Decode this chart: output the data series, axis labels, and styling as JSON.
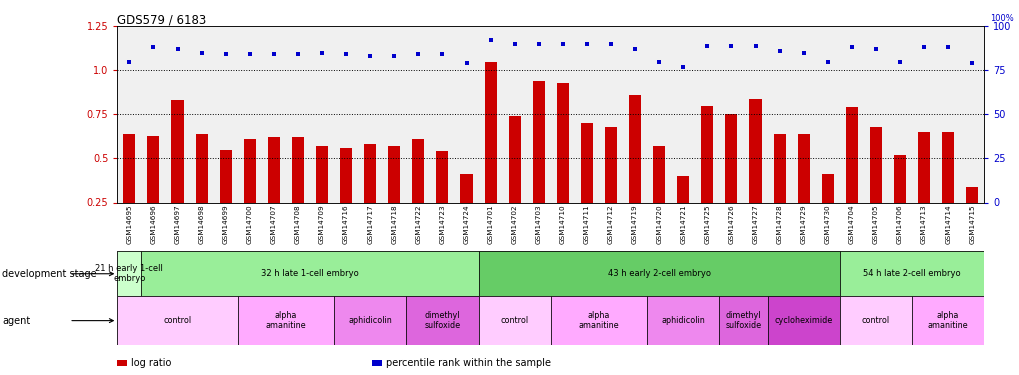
{
  "title": "GDS579 / 6183",
  "samples": [
    "GSM14695",
    "GSM14696",
    "GSM14697",
    "GSM14698",
    "GSM14699",
    "GSM14700",
    "GSM14707",
    "GSM14708",
    "GSM14709",
    "GSM14716",
    "GSM14717",
    "GSM14718",
    "GSM14722",
    "GSM14723",
    "GSM14724",
    "GSM14701",
    "GSM14702",
    "GSM14703",
    "GSM14710",
    "GSM14711",
    "GSM14712",
    "GSM14719",
    "GSM14720",
    "GSM14721",
    "GSM14725",
    "GSM14726",
    "GSM14727",
    "GSM14728",
    "GSM14729",
    "GSM14730",
    "GSM14704",
    "GSM14705",
    "GSM14706",
    "GSM14713",
    "GSM14714",
    "GSM14715"
  ],
  "log_ratio": [
    0.64,
    0.63,
    0.83,
    0.64,
    0.55,
    0.61,
    0.62,
    0.62,
    0.57,
    0.56,
    0.58,
    0.57,
    0.61,
    0.54,
    0.41,
    1.05,
    0.74,
    0.94,
    0.93,
    0.7,
    0.68,
    0.86,
    0.57,
    0.4,
    0.8,
    0.75,
    0.84,
    0.64,
    0.64,
    0.41,
    0.79,
    0.68,
    0.52,
    0.65,
    0.65,
    0.34
  ],
  "percentile": [
    80,
    88,
    87,
    85,
    84,
    84,
    84,
    84,
    85,
    84,
    83,
    83,
    84,
    84,
    79,
    92,
    90,
    90,
    90,
    90,
    90,
    87,
    80,
    77,
    89,
    89,
    89,
    86,
    85,
    80,
    88,
    87,
    80,
    88,
    88,
    79
  ],
  "bar_color": "#cc0000",
  "dot_color": "#0000cc",
  "background_color": "#ffffff",
  "plot_bg": "#f0f0f0",
  "ylim_left": [
    0.25,
    1.25
  ],
  "ylim_right": [
    0,
    100
  ],
  "yticks_left": [
    0.25,
    0.5,
    0.75,
    1.0,
    1.25
  ],
  "yticks_right": [
    0,
    25,
    50,
    75,
    100
  ],
  "hlines": [
    0.5,
    0.75,
    1.0
  ],
  "dev_stage_groups": [
    {
      "label": "21 h early 1-cell\nembryо",
      "start": 0,
      "end": 0,
      "color": "#ccffcc"
    },
    {
      "label": "32 h late 1-cell embryo",
      "start": 1,
      "end": 14,
      "color": "#99ee99"
    },
    {
      "label": "43 h early 2-cell embryo",
      "start": 15,
      "end": 29,
      "color": "#66cc66"
    },
    {
      "label": "54 h late 2-cell embryo",
      "start": 30,
      "end": 35,
      "color": "#99ee99"
    }
  ],
  "agent_groups": [
    {
      "label": "control",
      "start": 0,
      "end": 4,
      "color": "#ffccff"
    },
    {
      "label": "alpha\namanitine",
      "start": 5,
      "end": 8,
      "color": "#ffaaff"
    },
    {
      "label": "aphidicolin",
      "start": 9,
      "end": 11,
      "color": "#ee88ee"
    },
    {
      "label": "dimethyl\nsulfoxide",
      "start": 12,
      "end": 14,
      "color": "#dd66dd"
    },
    {
      "label": "control",
      "start": 15,
      "end": 17,
      "color": "#ffccff"
    },
    {
      "label": "alpha\namanitine",
      "start": 18,
      "end": 21,
      "color": "#ffaaff"
    },
    {
      "label": "aphidicolin",
      "start": 22,
      "end": 24,
      "color": "#ee88ee"
    },
    {
      "label": "dimethyl\nsulfoxide",
      "start": 25,
      "end": 26,
      "color": "#dd66dd"
    },
    {
      "label": "cycloheximide",
      "start": 27,
      "end": 29,
      "color": "#cc44cc"
    },
    {
      "label": "control",
      "start": 30,
      "end": 32,
      "color": "#ffccff"
    },
    {
      "label": "alpha\namanitine",
      "start": 33,
      "end": 35,
      "color": "#ffaaff"
    }
  ],
  "legend_items": [
    {
      "label": "log ratio",
      "color": "#cc0000"
    },
    {
      "label": "percentile rank within the sample",
      "color": "#0000cc"
    }
  ],
  "left_labels": [
    {
      "text": "development stage",
      "row": "dev"
    },
    {
      "text": "agent",
      "row": "agent"
    }
  ]
}
